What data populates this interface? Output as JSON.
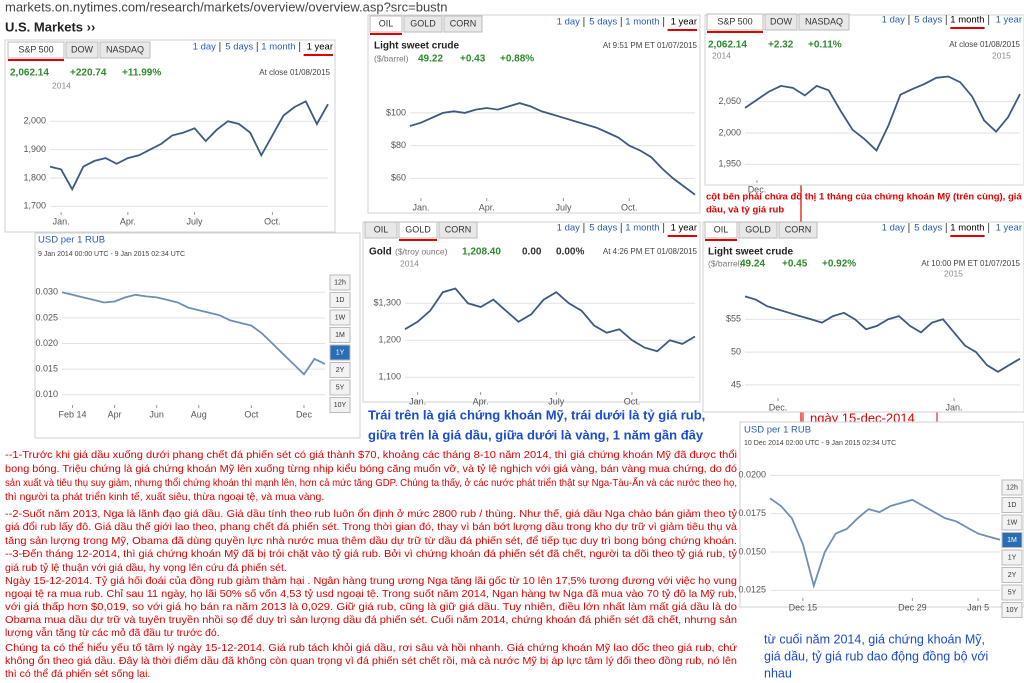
{
  "url": "markets.on.nytimes.com/research/markets/overview/overview.asp?src=bustn",
  "section": "U.S. Markets ››",
  "chart_data": [
    {
      "type": "line",
      "tabs": [
        "S&P 500",
        "DOW",
        "NASDAQ"
      ],
      "ranges": [
        "1 day",
        "5 days",
        "1 month",
        "1 year"
      ],
      "price": "2,062.14",
      "change": "+220.74",
      "change_pct": "+11.99%",
      "timestamp": "At close 01/08/2015",
      "years": [
        "2014"
      ],
      "categories": [
        null,
        "Jan.",
        null,
        null,
        null,
        null,
        null,
        "Apr.",
        null,
        null,
        null,
        null,
        null,
        "July",
        null,
        null,
        null,
        null,
        null,
        null,
        "Oct.",
        null,
        null,
        null,
        null,
        null
      ],
      "values": [
        1840,
        1830,
        1760,
        1840,
        1860,
        1870,
        1850,
        1870,
        1880,
        1900,
        1920,
        1950,
        1960,
        1975,
        1930,
        1970,
        2000,
        1990,
        1960,
        1880,
        1950,
        2020,
        2050,
        2070,
        1990,
        2060
      ],
      "ylim": [
        1680,
        2110
      ],
      "yticks": [
        {
          "value": 1700,
          "label": "1,700"
        },
        {
          "value": 1800,
          "label": "1,800"
        },
        {
          "value": 1900,
          "label": "1,900"
        },
        {
          "value": 2000,
          "label": "2,000"
        }
      ],
      "color": "#3d5a80",
      "grid": true
    },
    {
      "type": "line",
      "tabs": [
        "OIL",
        "GOLD",
        "CORN"
      ],
      "ranges": [
        "1 day",
        "5 days",
        "1 month",
        "1 year"
      ],
      "title": "Light sweet crude",
      "unit": "($/barrel)",
      "price": "49.22",
      "change": "+0.43",
      "change_pct": "+0.88%",
      "timestamp": "At 9:51 PM ET 01/07/2015",
      "categories": [
        null,
        "Jan.",
        null,
        null,
        null,
        null,
        null,
        "Apr.",
        null,
        null,
        null,
        null,
        null,
        null,
        "July",
        null,
        null,
        null,
        null,
        null,
        "Oct.",
        null,
        null,
        null,
        null,
        null,
        null
      ],
      "values": [
        92,
        94,
        97,
        100,
        101,
        100,
        102,
        103,
        102,
        104,
        106,
        104,
        101,
        99,
        97,
        95,
        93,
        91,
        88,
        85,
        80,
        77,
        73,
        66,
        60,
        55,
        50
      ],
      "ylim": [
        48,
        125
      ],
      "yticks": [
        {
          "value": 60,
          "label": "$60"
        },
        {
          "value": 80,
          "label": "$80"
        },
        {
          "value": 100,
          "label": "$100"
        }
      ],
      "color": "#3d5a80",
      "grid": true
    },
    {
      "type": "line",
      "tabs": [
        "S&P 500",
        "DOW",
        "NASDAQ"
      ],
      "ranges": [
        "1 day",
        "5 days",
        "1 month",
        "1 year"
      ],
      "price": "2,062.14",
      "change": "+2.32",
      "change_pct": "+0.11%",
      "timestamp": "At close 01/08/2015",
      "years": [
        "2014",
        "2015"
      ],
      "categories": [
        null,
        "Dec.",
        null,
        null,
        null,
        null,
        null,
        null,
        null,
        null,
        null,
        null,
        null,
        null,
        null,
        null,
        null,
        null,
        null,
        null,
        null,
        null,
        null,
        null
      ],
      "values": [
        2040,
        2053,
        2066,
        2075,
        2072,
        2060,
        2075,
        2068,
        2035,
        2005,
        1990,
        1972,
        2012,
        2061,
        2070,
        2078,
        2088,
        2090,
        2081,
        2058,
        2020,
        2002,
        2025,
        2062
      ],
      "ylim": [
        1925,
        2110
      ],
      "yticks": [
        {
          "value": 1950,
          "label": "1,950"
        },
        {
          "value": 2000,
          "label": "2,000"
        },
        {
          "value": 2050,
          "label": "2,050"
        }
      ],
      "color": "#3d5a80",
      "grid": true
    },
    {
      "type": "line",
      "title": "USD per 1 RUB",
      "subtitle": "9 Jan 2014 00:00 UTC - 9 Jan 2015 02:34 UTC",
      "buttons": [
        "12h",
        "1D",
        "1W",
        "1M",
        "1Y",
        "2Y",
        "5Y",
        "10Y"
      ],
      "categories": [
        null,
        "Feb 14",
        null,
        null,
        null,
        "Apr",
        null,
        null,
        null,
        "Jun",
        null,
        null,
        null,
        "Aug",
        null,
        null,
        null,
        null,
        "Oct",
        null,
        null,
        null,
        null,
        "Dec",
        null,
        null
      ],
      "values": [
        0.03,
        0.0295,
        0.029,
        0.0285,
        0.028,
        0.0282,
        0.029,
        0.0295,
        0.0292,
        0.029,
        0.0285,
        0.028,
        0.027,
        0.0265,
        0.026,
        0.0255,
        0.0245,
        0.024,
        0.0235,
        0.022,
        0.02,
        0.018,
        0.016,
        0.014,
        0.017,
        0.016
      ],
      "ylim": [
        0.008,
        0.032
      ],
      "yticks": [
        {
          "value": 0.01,
          "label": "0.010"
        },
        0.015,
        {
          "value": 0.02,
          "label": "0.020"
        },
        0.025,
        {
          "value": 0.03,
          "label": "0.030"
        }
      ],
      "color": "#6e8fb5",
      "grid": true
    },
    {
      "type": "line",
      "tabs": [
        "OIL",
        "GOLD",
        "CORN"
      ],
      "ranges": [
        "1 day",
        "5 days",
        "1 month",
        "1 year"
      ],
      "title": "Gold",
      "unit": "($/troy ounce)",
      "price": "1,208.40",
      "change": "0.00",
      "change_pct": "0.00%",
      "timestamp": "At 4:26 PM ET 01/08/2015",
      "years": [
        "2014"
      ],
      "categories": [
        null,
        "Jan.",
        null,
        null,
        null,
        null,
        "Apr.",
        null,
        null,
        null,
        null,
        null,
        "July",
        null,
        null,
        null,
        null,
        null,
        "Oct.",
        null,
        null,
        null,
        null,
        null
      ],
      "values": [
        1230,
        1250,
        1280,
        1330,
        1340,
        1300,
        1290,
        1310,
        1280,
        1250,
        1270,
        1310,
        1330,
        1300,
        1280,
        1240,
        1220,
        1230,
        1200,
        1180,
        1170,
        1200,
        1190,
        1210
      ],
      "ylim": [
        1060,
        1390
      ],
      "yticks": [
        {
          "value": 1100,
          "label": "1,100"
        },
        {
          "value": 1200,
          "label": "1,200"
        },
        {
          "value": 1300,
          "label": "$1,300"
        }
      ],
      "color": "#3d5a80",
      "grid": true
    },
    {
      "type": "line",
      "tabs": [
        "OIL",
        "GOLD",
        "CORN"
      ],
      "ranges": [
        "1 day",
        "5 days",
        "1 month",
        "1 year"
      ],
      "title": "Light sweet crude",
      "unit": "($/barrel)",
      "price": "49.24",
      "change": "+0.45",
      "change_pct": "+0.92%",
      "timestamp": "At 10:00 PM ET 01/07/2015",
      "years": [
        "2015"
      ],
      "categories": [
        null,
        null,
        null,
        "Dec.",
        null,
        null,
        null,
        null,
        null,
        null,
        null,
        null,
        null,
        null,
        null,
        null,
        null,
        null,
        null,
        "Jan.",
        null,
        null,
        null,
        null,
        null,
        null
      ],
      "values": [
        58.5,
        58,
        57,
        56.5,
        56,
        55.5,
        55,
        54.5,
        55.5,
        56,
        55,
        53.5,
        54,
        55,
        55.5,
        54,
        53,
        54.5,
        55,
        53,
        51,
        50,
        48,
        47,
        48,
        49
      ],
      "ylim": [
        43,
        61
      ],
      "yticks": [
        45,
        50,
        {
          "value": 55,
          "label": "$55"
        }
      ],
      "color": "#3d5a80",
      "grid": true
    },
    {
      "type": "line",
      "title": "USD per 1 RUB",
      "subtitle": "10 Dec 2014 02:00 UTC - 9 Jan 2015 02:34 UTC",
      "buttons": [
        "12h",
        "1D",
        "1W",
        "1M",
        "1Y",
        "2Y",
        "5Y",
        "10Y"
      ],
      "categories": [
        null,
        null,
        null,
        "Dec 15",
        null,
        null,
        null,
        null,
        null,
        null,
        null,
        null,
        null,
        "Dec 29",
        null,
        null,
        null,
        null,
        null,
        "Jan 5",
        null,
        null
      ],
      "values": [
        0.0185,
        0.018,
        0.0172,
        0.0155,
        0.0128,
        0.015,
        0.0162,
        0.0165,
        0.0172,
        0.0178,
        0.0176,
        0.018,
        0.0182,
        0.0184,
        0.018,
        0.0176,
        0.0172,
        0.017,
        0.0166,
        0.0162,
        0.016,
        0.0158
      ],
      "ylim": [
        0.012,
        0.021
      ],
      "yticks": [
        {
          "value": 0.0125,
          "label": "0.0125"
        },
        {
          "value": 0.015,
          "label": "0.0150"
        },
        {
          "value": 0.0175,
          "label": "0.0175"
        },
        {
          "value": 0.02,
          "label": "0.0200"
        }
      ],
      "color": "#6e8fb5",
      "grid": true
    }
  ],
  "annotations": {
    "right_column": [
      "cột bên phải chứa đồ thị 1 tháng của chứng khoán Mỹ (trên cùng), giá",
      "dầu, và tỷ giá rub"
    ],
    "date_marker": "ngày 15-dec-2014",
    "caption": [
      "Trái trên là giá chứng khoán Mỹ, trái dưới là tỷ giá rub,",
      "giữa trên là giá dầu, giữa dưới là vàng, 1 năm gần đây"
    ],
    "conclusion": [
      "từ cuối năm 2014, giá chứng khoán Mỹ,",
      "giá dầu, tỷ giá rub dao động đồng bộ với",
      "nhau"
    ]
  },
  "notes": [
    "--1-Trước khi giá dầu xuống dưới phang chết đá phiến sét có giá thành $70, khoảng các tháng 8-10 năm 2014, thì giá chứng khoán Mỹ đã được thổi",
    "bong bóng. Triệu chứng là giá chứng khoán Mỹ lên xuống từng nhịp kiểu bóng căng muốn vỡ, và tỷ lệ nghịch với giá vàng, bán vàng mua chứng, do đó",
    "sản xuất và tiêu thụ suy giảm, nhưng thổi chứng khoán thì mạnh lên, hơn cả mức tăng GDP. Chúng ta thấy, ở các nước phát triển thật sự Nga-Tàu-Ấn và các nước theo họ,",
    "thì người ta phát triển kinh tế, xuất siêu, thừa ngoại tệ, và mua vàng.",
    "--2-Suốt năm 2013, Nga là lãnh đạo giá dầu. Giá dầu tính theo rub luôn ổn định ở mức 2800 rub / thùng. Như thế, giá dầu Nga chào bán giảm theo tỷ",
    "giá đổi rub lấy đô. Giá dầu thế giới lao theo, phang chết đá phiến sét. Trong thời gian đó, thay vì bán bớt lượng dầu trong kho dự trữ vì giảm tiêu thụ và",
    "tăng sản lượng trong Mỹ, Obama đã dùng quyền lực nhà nước mua thêm dầu dự trữ từ dầu đá phiến sét, để tiếp tục duy trì bong bóng chứng khoán.",
    "--3-Đến tháng 12-2014, thì giá chứng khoán Mỹ đã bị trói chặt vào tỷ giá rub. Bởi vì chứng khoán đá phiến sét đã chết, người ta dõi theo tỷ giá rub, tỷ",
    "giá rub tỷ lệ thuận với giá dầu, hy vọng lên cứu đá phiến sét.",
    "Ngày 15-12-2014. Tỷ giá hối đoái của đồng rub giảm thảm hại . Ngân hàng trung ương Nga tăng lãi gốc từ 10 lên 17,5% tương đương với việc họ vung",
    "ngoại tệ ra mua rub. Chỉ sau 11 ngày, họ lãi 50% số vốn 4,53 tỷ usd ngoại tệ. Trong suốt năm 2014, Ngan hàng tw Nga đã mua vào 70 tỷ đô la Mỹ rub,",
    "với giá thấp hơn $0,019, so với giá họ bán ra năm 2013 là 0,029. Giữ giá rub, cũng là giữ giá dầu. Tuy nhiên, điều lớn nhất làm mất giá dầu là do",
    "Obama mua dầu dự trữ và tuyên truyền nhồi sọ để duy trì sản lượng dầu đá phiến sét. Cuối năm 2014, chứng khoán đá phiến sét đã chết, nhưng sản",
    "lượng vẫn tăng từ các mỏ đã đầu tư trước đó.",
    "Chúng ta có thể hiểu yếu tố tâm lý ngày 15-12-2014. Giá rub tách khỏi giá dầu, rơi sâu và hồi nhanh. Giá chứng khoán Mỹ lao dốc theo giá rub, chứ",
    "không ổn theo giá dầu. Đây là thời điểm dầu đã không còn quan trọng vì đá phiến sét chết rồi, mà cả nước Mỹ bị áp lực tâm lý đối theo đồng rub, nó lên",
    "thì có thể đá phiến sét sống lại."
  ]
}
